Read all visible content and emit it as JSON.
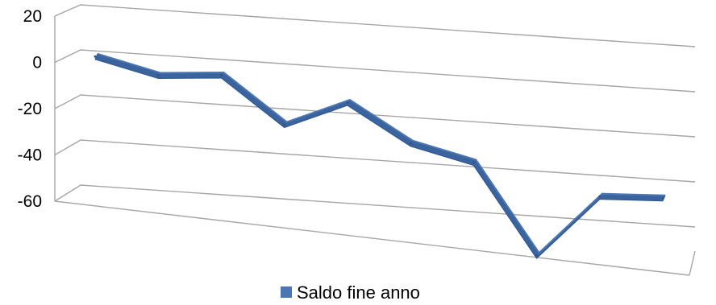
{
  "chart_data": {
    "type": "line",
    "title": "",
    "xlabel": "",
    "ylabel": "",
    "ylim": [
      -60,
      20
    ],
    "yticks": [
      20,
      0,
      -20,
      -40,
      -60
    ],
    "ytick_labels": [
      "20",
      "0",
      "-20",
      "-40",
      "-60"
    ],
    "grid": true,
    "legend": "bottom",
    "series": [
      {
        "name": "Saldo fine anno",
        "color": "#4a76b4",
        "values": [
          6,
          0,
          3,
          -17,
          -4,
          -20,
          -26,
          -66,
          -36,
          -34
        ]
      }
    ]
  }
}
